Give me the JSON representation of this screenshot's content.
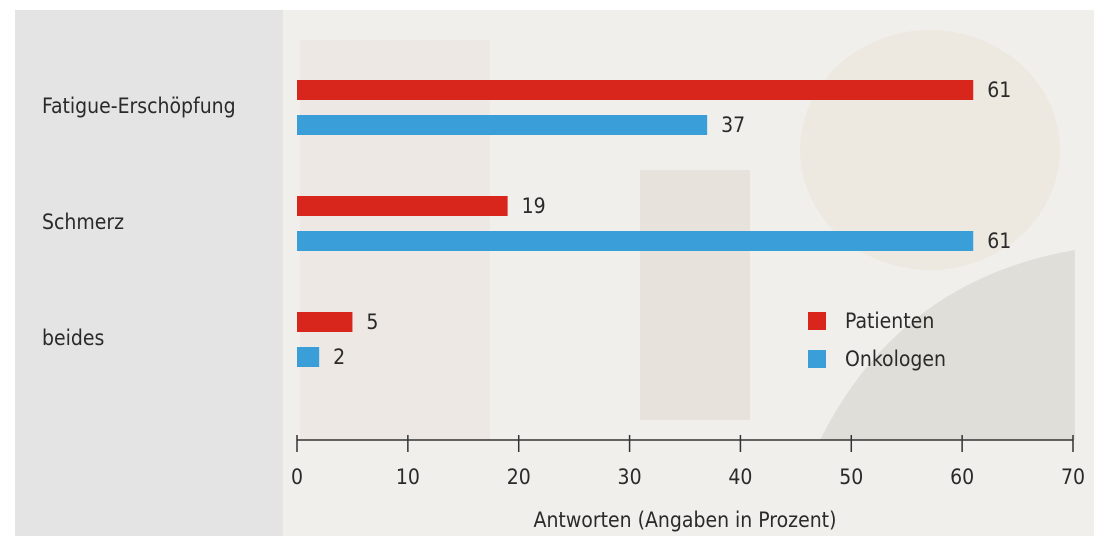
{
  "chart_data": {
    "type": "bar",
    "orientation": "horizontal",
    "categories": [
      "Fatigue-Erschöpfung",
      "Schmerz",
      "beides"
    ],
    "series": [
      {
        "name": "Patienten",
        "color": "#d9261c",
        "values": [
          61,
          19,
          5
        ]
      },
      {
        "name": "Onkologen",
        "color": "#3a9fd8",
        "values": [
          37,
          61,
          2
        ]
      }
    ],
    "xlim": [
      0,
      70
    ],
    "xticks": [
      0,
      10,
      20,
      30,
      40,
      50,
      60,
      70
    ],
    "xlabel": "Antworten (Angaben in Prozent)",
    "legend": "lower right"
  }
}
